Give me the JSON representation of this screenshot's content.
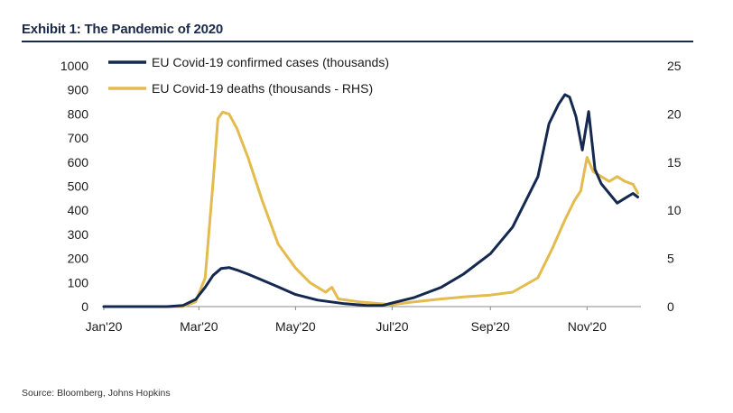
{
  "exhibit": {
    "title": "Exhibit 1: The Pandemic of 2020",
    "source": "Source: Bloomberg, Johns Hopkins"
  },
  "colors": {
    "cases": "#15284f",
    "deaths": "#e3bb4e",
    "rule": "#1b2a48",
    "axis": "#888888"
  },
  "chart_data": {
    "type": "line",
    "title": "",
    "xlabel": "",
    "ylabel": "",
    "ylabel_right": "",
    "legend_position": "top-left",
    "grid": false,
    "x_ticks": [
      "Jan'20",
      "Mar'20",
      "May'20",
      "Jul'20",
      "Sep'20",
      "Nov'20"
    ],
    "x_tick_dates": [
      "2020-01-01",
      "2020-03-01",
      "2020-05-01",
      "2020-07-01",
      "2020-09-01",
      "2020-11-01"
    ],
    "xlim": [
      "2020-01-01",
      "2020-12-05"
    ],
    "ylim": [
      0,
      1000
    ],
    "y_ticks": [
      0,
      100,
      200,
      300,
      400,
      500,
      600,
      700,
      800,
      900,
      1000
    ],
    "ylim_right": [
      0,
      25
    ],
    "y_ticks_right": [
      0,
      5,
      10,
      15,
      20,
      25
    ],
    "series": [
      {
        "name": "EU Covid-19 confirmed cases (thousands)",
        "axis": "left",
        "points": [
          [
            "2020-01-01",
            0
          ],
          [
            "2020-02-10",
            0
          ],
          [
            "2020-02-20",
            5
          ],
          [
            "2020-02-28",
            30
          ],
          [
            "2020-03-05",
            80
          ],
          [
            "2020-03-10",
            130
          ],
          [
            "2020-03-15",
            158
          ],
          [
            "2020-03-20",
            162
          ],
          [
            "2020-03-25",
            152
          ],
          [
            "2020-04-01",
            135
          ],
          [
            "2020-04-10",
            110
          ],
          [
            "2020-04-20",
            82
          ],
          [
            "2020-05-01",
            50
          ],
          [
            "2020-05-15",
            27
          ],
          [
            "2020-06-01",
            12
          ],
          [
            "2020-06-15",
            5
          ],
          [
            "2020-06-25",
            5
          ],
          [
            "2020-07-01",
            15
          ],
          [
            "2020-07-15",
            38
          ],
          [
            "2020-08-01",
            80
          ],
          [
            "2020-08-15",
            135
          ],
          [
            "2020-09-01",
            220
          ],
          [
            "2020-09-15",
            330
          ],
          [
            "2020-10-01",
            540
          ],
          [
            "2020-10-08",
            760
          ],
          [
            "2020-10-14",
            840
          ],
          [
            "2020-10-18",
            880
          ],
          [
            "2020-10-21",
            870
          ],
          [
            "2020-10-25",
            790
          ],
          [
            "2020-10-29",
            650
          ],
          [
            "2020-11-02",
            810
          ],
          [
            "2020-11-06",
            570
          ],
          [
            "2020-11-10",
            510
          ],
          [
            "2020-11-15",
            470
          ],
          [
            "2020-11-20",
            430
          ],
          [
            "2020-11-25",
            450
          ],
          [
            "2020-11-30",
            470
          ],
          [
            "2020-12-03",
            455
          ]
        ]
      },
      {
        "name": "EU Covid-19 deaths (thousands - RHS)",
        "axis": "right",
        "points": [
          [
            "2020-01-01",
            0
          ],
          [
            "2020-02-20",
            0
          ],
          [
            "2020-02-28",
            0.5
          ],
          [
            "2020-03-05",
            3.0
          ],
          [
            "2020-03-10",
            13.0
          ],
          [
            "2020-03-13",
            19.5
          ],
          [
            "2020-03-16",
            20.2
          ],
          [
            "2020-03-20",
            20.0
          ],
          [
            "2020-03-25",
            18.5
          ],
          [
            "2020-04-01",
            15.5
          ],
          [
            "2020-04-10",
            11.0
          ],
          [
            "2020-04-20",
            6.5
          ],
          [
            "2020-05-01",
            4.0
          ],
          [
            "2020-05-10",
            2.5
          ],
          [
            "2020-05-20",
            1.5
          ],
          [
            "2020-05-24",
            2.0
          ],
          [
            "2020-05-28",
            0.8
          ],
          [
            "2020-06-10",
            0.5
          ],
          [
            "2020-07-01",
            0.2
          ],
          [
            "2020-07-15",
            0.5
          ],
          [
            "2020-08-01",
            0.8
          ],
          [
            "2020-08-15",
            1.0
          ],
          [
            "2020-09-01",
            1.2
          ],
          [
            "2020-09-15",
            1.5
          ],
          [
            "2020-10-01",
            3.0
          ],
          [
            "2020-10-10",
            6.0
          ],
          [
            "2020-10-18",
            9.0
          ],
          [
            "2020-10-24",
            11.0
          ],
          [
            "2020-10-28",
            12.0
          ],
          [
            "2020-11-01",
            15.5
          ],
          [
            "2020-11-05",
            14.0
          ],
          [
            "2020-11-10",
            13.5
          ],
          [
            "2020-11-15",
            13.0
          ],
          [
            "2020-11-20",
            13.5
          ],
          [
            "2020-11-25",
            13.0
          ],
          [
            "2020-11-30",
            12.7
          ],
          [
            "2020-12-03",
            11.8
          ]
        ]
      }
    ]
  }
}
